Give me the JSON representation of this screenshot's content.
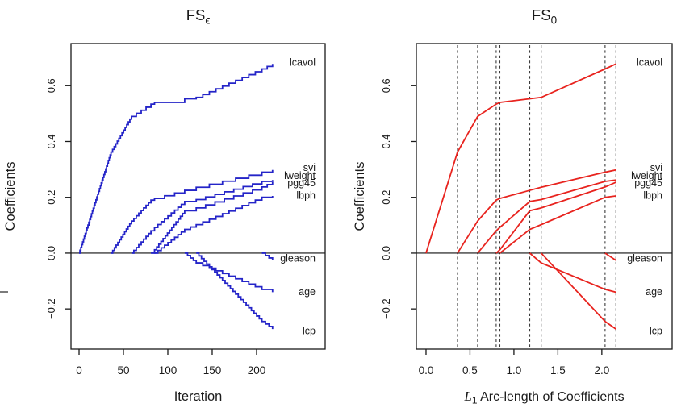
{
  "figure": {
    "background": "#ffffff",
    "artifact_tick": {
      "x": 0,
      "y": 362,
      "w": 10,
      "color": "#5a5a5a"
    }
  },
  "colors": {
    "left_curve": "#2424c8",
    "right_curve": "#e8231e",
    "axis": "#1a1a1a",
    "dashed_line": "#3a3a3a",
    "zero_line": "#111111"
  },
  "chart_data": [
    {
      "id": "fs-epsilon",
      "type": "line",
      "variant": "staircase",
      "step_epsilon": 0.01,
      "title": {
        "base": "FS",
        "sub": "ϵ"
      },
      "xlabel": "Iteration",
      "ylabel": "Coefficients",
      "x_ticks": [
        0,
        50,
        100,
        150,
        200
      ],
      "x_tick_labels": [
        "0",
        "50",
        "100",
        "150",
        "200"
      ],
      "y_ticks": [
        0.6,
        0.4,
        0.2,
        0.0,
        -0.2
      ],
      "y_tick_labels": [
        "0.6",
        "0.4",
        "0.2",
        "0.0",
        "−0.2"
      ],
      "xlim": [
        -9.1,
        277.3
      ],
      "ylim": [
        -0.344,
        0.751
      ],
      "grid": false,
      "hlines": [
        0
      ],
      "vlines": [],
      "curve_color_key": "left_curve",
      "series": [
        {
          "name": "lcavol",
          "label_v": 0.685,
          "points": [
            [
              0,
              0
            ],
            [
              36,
              0.362
            ],
            [
              59,
              0.49
            ],
            [
              81,
              0.534
            ],
            [
              85,
              0.54
            ],
            [
              119,
              0.553
            ],
            [
              132,
              0.558
            ],
            [
              206,
              0.66
            ],
            [
              218,
              0.678
            ]
          ]
        },
        {
          "name": "svi",
          "label_v": 0.307,
          "points": [
            [
              36,
              0
            ],
            [
              59,
              0.115
            ],
            [
              81,
              0.19
            ],
            [
              85,
              0.196
            ],
            [
              119,
              0.225
            ],
            [
              132,
              0.236
            ],
            [
              206,
              0.29
            ],
            [
              218,
              0.298
            ]
          ]
        },
        {
          "name": "lweight",
          "label_v": 0.278,
          "points": [
            [
              59,
              0
            ],
            [
              81,
              0.08
            ],
            [
              85,
              0.092
            ],
            [
              119,
              0.185
            ],
            [
              132,
              0.192
            ],
            [
              206,
              0.257
            ],
            [
              218,
              0.262
            ]
          ]
        },
        {
          "name": "pgg45",
          "label_v": 0.252,
          "points": [
            [
              81,
              0
            ],
            [
              85,
              0.012
            ],
            [
              119,
              0.152
            ],
            [
              132,
              0.162
            ],
            [
              206,
              0.237
            ],
            [
              218,
              0.254
            ]
          ]
        },
        {
          "name": "lbph",
          "label_v": 0.208,
          "points": [
            [
              85,
              0
            ],
            [
              119,
              0.085
            ],
            [
              132,
              0.102
            ],
            [
              206,
              0.2
            ],
            [
              218,
              0.205
            ]
          ]
        },
        {
          "name": "gleason",
          "label_v": -0.018,
          "points": [
            [
              206,
              0
            ],
            [
              218,
              -0.026
            ]
          ]
        },
        {
          "name": "age",
          "label_v": -0.137,
          "points": [
            [
              119,
              0
            ],
            [
              132,
              -0.035
            ],
            [
              206,
              -0.13
            ],
            [
              218,
              -0.14
            ]
          ]
        },
        {
          "name": "lcp",
          "label_v": -0.278,
          "points": [
            [
              132,
              0
            ],
            [
              206,
              -0.245
            ],
            [
              218,
              -0.272
            ]
          ]
        }
      ]
    },
    {
      "id": "fs-zero",
      "type": "line",
      "variant": "polyline",
      "title": {
        "base": "FS",
        "sub": "0"
      },
      "xlabel_math": {
        "lead": "L",
        "lead_sub": "1",
        "rest": " Arc-length of Coefficients"
      },
      "ylabel": "Coefficients",
      "x_ticks": [
        0,
        0.5,
        1.0,
        1.5,
        2.0
      ],
      "x_tick_labels": [
        "0.0",
        "0.5",
        "1.0",
        "1.5",
        "2.0"
      ],
      "y_ticks": [
        0.6,
        0.4,
        0.2,
        0.0,
        -0.2
      ],
      "y_tick_labels": [
        "0.6",
        "0.4",
        "0.2",
        "0.0",
        "−0.2"
      ],
      "xlim": [
        -0.11,
        2.8
      ],
      "ylim": [
        -0.344,
        0.751
      ],
      "grid": false,
      "hlines": [
        0
      ],
      "vlines": [
        0.358,
        0.587,
        0.798,
        0.84,
        1.18,
        1.31,
        2.037,
        2.16
      ],
      "curve_color_key": "right_curve",
      "series": [
        {
          "name": "lcavol",
          "label_v": 0.685,
          "points": [
            [
              0,
              0
            ],
            [
              0.358,
              0.362
            ],
            [
              0.587,
              0.49
            ],
            [
              0.798,
              0.534
            ],
            [
              0.84,
              0.54
            ],
            [
              1.18,
              0.553
            ],
            [
              1.31,
              0.558
            ],
            [
              2.037,
              0.66
            ],
            [
              2.16,
              0.678
            ]
          ]
        },
        {
          "name": "svi",
          "label_v": 0.307,
          "points": [
            [
              0.358,
              0
            ],
            [
              0.587,
              0.115
            ],
            [
              0.798,
              0.19
            ],
            [
              0.84,
              0.196
            ],
            [
              1.18,
              0.225
            ],
            [
              1.31,
              0.236
            ],
            [
              2.037,
              0.29
            ],
            [
              2.16,
              0.298
            ]
          ]
        },
        {
          "name": "lweight",
          "label_v": 0.278,
          "points": [
            [
              0.587,
              0
            ],
            [
              0.798,
              0.08
            ],
            [
              0.84,
              0.092
            ],
            [
              1.18,
              0.185
            ],
            [
              1.31,
              0.192
            ],
            [
              2.037,
              0.257
            ],
            [
              2.16,
              0.262
            ]
          ]
        },
        {
          "name": "pgg45",
          "label_v": 0.252,
          "points": [
            [
              0.798,
              0
            ],
            [
              0.84,
              0.012
            ],
            [
              1.18,
              0.152
            ],
            [
              1.31,
              0.162
            ],
            [
              2.037,
              0.237
            ],
            [
              2.16,
              0.254
            ]
          ]
        },
        {
          "name": "lbph",
          "label_v": 0.208,
          "points": [
            [
              0.84,
              0
            ],
            [
              1.18,
              0.085
            ],
            [
              1.31,
              0.102
            ],
            [
              2.037,
              0.2
            ],
            [
              2.16,
              0.205
            ]
          ]
        },
        {
          "name": "gleason",
          "label_v": -0.018,
          "points": [
            [
              2.037,
              0
            ],
            [
              2.16,
              -0.026
            ]
          ]
        },
        {
          "name": "age",
          "label_v": -0.137,
          "points": [
            [
              1.18,
              0
            ],
            [
              1.31,
              -0.035
            ],
            [
              2.037,
              -0.13
            ],
            [
              2.16,
              -0.14
            ]
          ]
        },
        {
          "name": "lcp",
          "label_v": -0.278,
          "points": [
            [
              1.31,
              0
            ],
            [
              2.037,
              -0.245
            ],
            [
              2.16,
              -0.272
            ]
          ]
        }
      ]
    }
  ]
}
